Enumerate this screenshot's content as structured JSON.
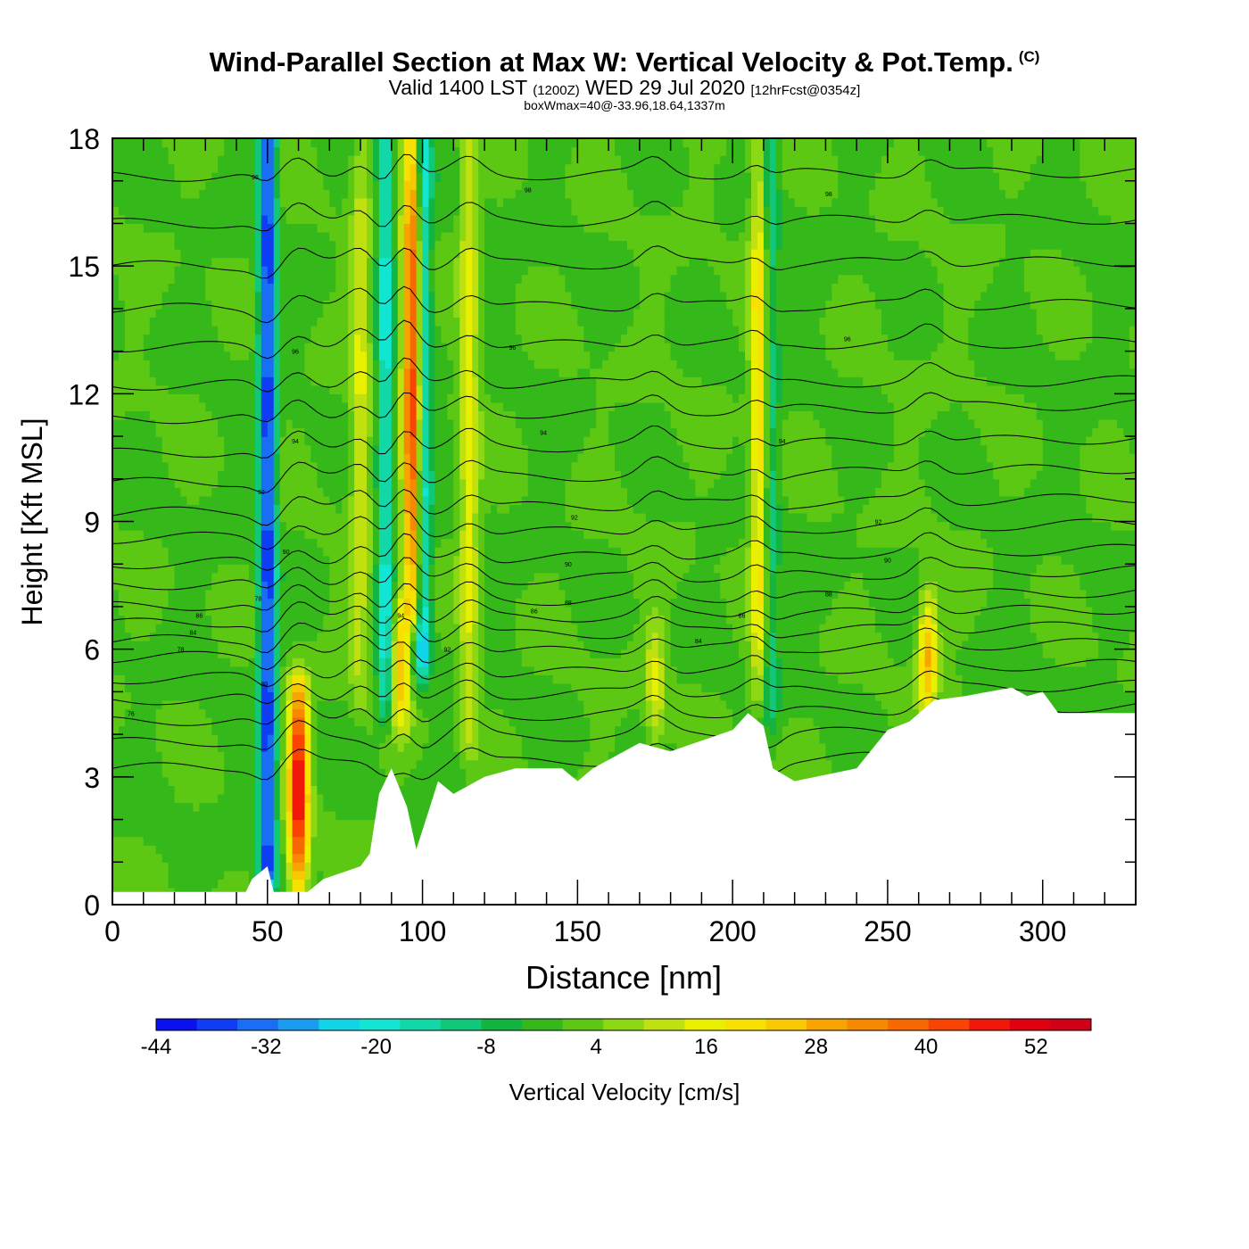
{
  "header": {
    "title": "Wind-Parallel Section at Max W: Vertical Velocity & Pot.Temp.",
    "title_mark": "(C)",
    "subtitle_a": "Valid 1400 LST",
    "subtitle_b": "(1200Z)",
    "subtitle_c": "WED 29 Jul 2020",
    "subtitle_d": "[12hrFcst@0354z]",
    "note": "boxWmax=40@-33.96,18.64,1337m"
  },
  "chart_data": {
    "type": "heatmap",
    "xlabel": "Distance [nm]",
    "ylabel": "Height [Kft MSL]",
    "xlim": [
      0,
      330
    ],
    "ylim": [
      0,
      18
    ],
    "xticks": [
      0,
      50,
      100,
      150,
      200,
      250,
      300
    ],
    "yticks": [
      0,
      3,
      6,
      9,
      12,
      15,
      18
    ],
    "colorbar": {
      "label": "Vertical Velocity [cm/s]",
      "min": -44,
      "max": 58,
      "tick_labels": [
        "-44",
        "-32",
        "-20",
        "-8",
        "4",
        "16",
        "28",
        "40",
        "52"
      ],
      "tick_values": [
        -44,
        -32,
        -20,
        -8,
        4,
        16,
        28,
        40,
        52
      ],
      "colors": [
        "#0a10f0",
        "#0f3cf5",
        "#1a6ef5",
        "#1a9cf0",
        "#10d5e8",
        "#10e6d2",
        "#12d8a8",
        "#10c878",
        "#14b440",
        "#34b81a",
        "#5cc814",
        "#8cd814",
        "#c0e010",
        "#e8f000",
        "#f8e000",
        "#f8c800",
        "#f8a400",
        "#f88800",
        "#f86800",
        "#f84400",
        "#f01808",
        "#e00010",
        "#d00018"
      ]
    },
    "background_w": 0,
    "updrafts": [
      {
        "x": 60,
        "z_bottom": 0.5,
        "z_top": 5.0,
        "max_w": 50
      },
      {
        "x": 97,
        "z_bottom": 7.0,
        "z_top": 18.0,
        "max_w": 48
      },
      {
        "x": 93,
        "z_bottom": 4.5,
        "z_top": 6.8,
        "max_w": 28
      },
      {
        "x": 263,
        "z_bottom": 4.8,
        "z_top": 7.0,
        "max_w": 28
      },
      {
        "x": 209,
        "z_bottom": 5.0,
        "z_top": 18.0,
        "max_w": 24
      },
      {
        "x": 115,
        "z_bottom": 4.0,
        "z_top": 18.0,
        "max_w": 16
      },
      {
        "x": 80,
        "z_bottom": 5.0,
        "z_top": 18.0,
        "max_w": 14
      },
      {
        "x": 175,
        "z_bottom": 4.0,
        "z_top": 6.5,
        "max_w": 14
      }
    ],
    "downdrafts": [
      {
        "x": 50,
        "z_bottom": 1.0,
        "z_top": 18.0,
        "min_w": -40
      },
      {
        "x": 100,
        "z_bottom": 6.0,
        "z_top": 18.0,
        "min_w": -28
      },
      {
        "x": 88,
        "z_bottom": 5.0,
        "z_top": 18.0,
        "min_w": -20
      },
      {
        "x": 212,
        "z_bottom": 5.0,
        "z_top": 18.0,
        "min_w": -16
      }
    ],
    "terrain": [
      {
        "x": 0,
        "z": 0.3
      },
      {
        "x": 43,
        "z": 0.3
      },
      {
        "x": 45,
        "z": 0.6
      },
      {
        "x": 50,
        "z": 0.9
      },
      {
        "x": 52,
        "z": 0.3
      },
      {
        "x": 63,
        "z": 0.3
      },
      {
        "x": 68,
        "z": 0.6
      },
      {
        "x": 80,
        "z": 0.9
      },
      {
        "x": 83,
        "z": 1.2
      },
      {
        "x": 86,
        "z": 2.6
      },
      {
        "x": 90,
        "z": 3.2
      },
      {
        "x": 95,
        "z": 2.3
      },
      {
        "x": 98,
        "z": 1.3
      },
      {
        "x": 102,
        "z": 2.2
      },
      {
        "x": 105,
        "z": 2.9
      },
      {
        "x": 110,
        "z": 2.6
      },
      {
        "x": 120,
        "z": 3.0
      },
      {
        "x": 130,
        "z": 3.2
      },
      {
        "x": 145,
        "z": 3.2
      },
      {
        "x": 150,
        "z": 2.9
      },
      {
        "x": 155,
        "z": 3.2
      },
      {
        "x": 170,
        "z": 3.8
      },
      {
        "x": 180,
        "z": 3.6
      },
      {
        "x": 200,
        "z": 4.1
      },
      {
        "x": 205,
        "z": 4.5
      },
      {
        "x": 210,
        "z": 4.2
      },
      {
        "x": 213,
        "z": 3.2
      },
      {
        "x": 220,
        "z": 2.9
      },
      {
        "x": 240,
        "z": 3.2
      },
      {
        "x": 250,
        "z": 4.1
      },
      {
        "x": 257,
        "z": 4.3
      },
      {
        "x": 265,
        "z": 4.8
      },
      {
        "x": 275,
        "z": 4.9
      },
      {
        "x": 290,
        "z": 5.1
      },
      {
        "x": 295,
        "z": 4.9
      },
      {
        "x": 300,
        "z": 5.0
      },
      {
        "x": 305,
        "z": 4.5
      },
      {
        "x": 330,
        "z": 4.5
      }
    ],
    "theta_contour_heights": [
      3.2,
      3.8,
      4.3,
      4.8,
      5.3,
      5.8,
      6.2,
      6.6,
      7.0,
      7.5,
      8.0,
      8.6,
      9.2,
      9.9,
      10.6,
      11.4,
      12.2,
      13.1,
      14.0,
      15.0,
      16.0,
      17.1
    ],
    "theta_labels": [
      {
        "text": "76",
        "x": 6,
        "z": 4.5
      },
      {
        "text": "78",
        "x": 22,
        "z": 6.0
      },
      {
        "text": "84",
        "x": 26,
        "z": 6.4
      },
      {
        "text": "86",
        "x": 28,
        "z": 6.8
      },
      {
        "text": "80",
        "x": 49,
        "z": 5.2
      },
      {
        "text": "78",
        "x": 47,
        "z": 7.2
      },
      {
        "text": "90",
        "x": 56,
        "z": 8.3
      },
      {
        "text": "92",
        "x": 48,
        "z": 9.7
      },
      {
        "text": "94",
        "x": 59,
        "z": 10.9
      },
      {
        "text": "96",
        "x": 59,
        "z": 13.0
      },
      {
        "text": "96",
        "x": 46,
        "z": 17.1
      },
      {
        "text": "94",
        "x": 93,
        "z": 6.8
      },
      {
        "text": "92",
        "x": 108,
        "z": 6.0
      },
      {
        "text": "86",
        "x": 136,
        "z": 6.9
      },
      {
        "text": "88",
        "x": 147,
        "z": 7.1
      },
      {
        "text": "90",
        "x": 147,
        "z": 8.0
      },
      {
        "text": "92",
        "x": 149,
        "z": 9.1
      },
      {
        "text": "94",
        "x": 139,
        "z": 11.1
      },
      {
        "text": "96",
        "x": 129,
        "z": 13.1
      },
      {
        "text": "98",
        "x": 134,
        "z": 16.8
      },
      {
        "text": "84",
        "x": 189,
        "z": 6.2
      },
      {
        "text": "86",
        "x": 203,
        "z": 6.8
      },
      {
        "text": "88",
        "x": 231,
        "z": 7.3
      },
      {
        "text": "90",
        "x": 250,
        "z": 8.1
      },
      {
        "text": "92",
        "x": 247,
        "z": 9.0
      },
      {
        "text": "94",
        "x": 216,
        "z": 10.9
      },
      {
        "text": "96",
        "x": 237,
        "z": 13.3
      },
      {
        "text": "98",
        "x": 231,
        "z": 16.7
      }
    ]
  }
}
